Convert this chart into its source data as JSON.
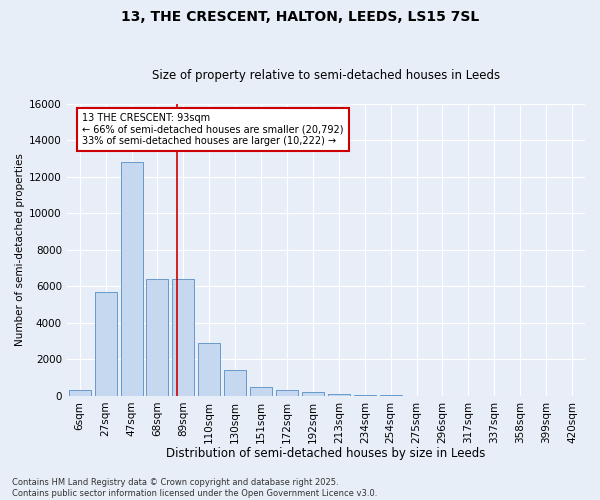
{
  "title1": "13, THE CRESCENT, HALTON, LEEDS, LS15 7SL",
  "title2": "Size of property relative to semi-detached houses in Leeds",
  "xlabel": "Distribution of semi-detached houses by size in Leeds",
  "ylabel": "Number of semi-detached properties",
  "categories": [
    "6sqm",
    "27sqm",
    "47sqm",
    "68sqm",
    "89sqm",
    "110sqm",
    "130sqm",
    "151sqm",
    "172sqm",
    "192sqm",
    "213sqm",
    "234sqm",
    "254sqm",
    "275sqm",
    "296sqm",
    "317sqm",
    "337sqm",
    "358sqm",
    "399sqm",
    "420sqm"
  ],
  "values": [
    300,
    5700,
    12800,
    6400,
    6400,
    2900,
    1400,
    500,
    300,
    200,
    100,
    50,
    30,
    10,
    5,
    0,
    0,
    0,
    0,
    0
  ],
  "bar_color": "#c5d8f0",
  "bar_edge_color": "#6699cc",
  "vline_x": 3.75,
  "vline_color": "#cc0000",
  "annotation_text": "13 THE CRESCENT: 93sqm\n← 66% of semi-detached houses are smaller (20,792)\n33% of semi-detached houses are larger (10,222) →",
  "annotation_box_color": "white",
  "annotation_box_edge": "#cc0000",
  "ylim": [
    0,
    16000
  ],
  "yticks": [
    0,
    2000,
    4000,
    6000,
    8000,
    10000,
    12000,
    14000,
    16000
  ],
  "footer1": "Contains HM Land Registry data © Crown copyright and database right 2025.",
  "footer2": "Contains public sector information licensed under the Open Government Licence v3.0.",
  "bg_color": "#e8eef8",
  "grid_color": "#d0d8e8",
  "title1_fontsize": 10,
  "title2_fontsize": 8.5,
  "xlabel_fontsize": 8.5,
  "ylabel_fontsize": 7.5,
  "tick_fontsize": 7.5,
  "annotation_fontsize": 7,
  "footer_fontsize": 6
}
